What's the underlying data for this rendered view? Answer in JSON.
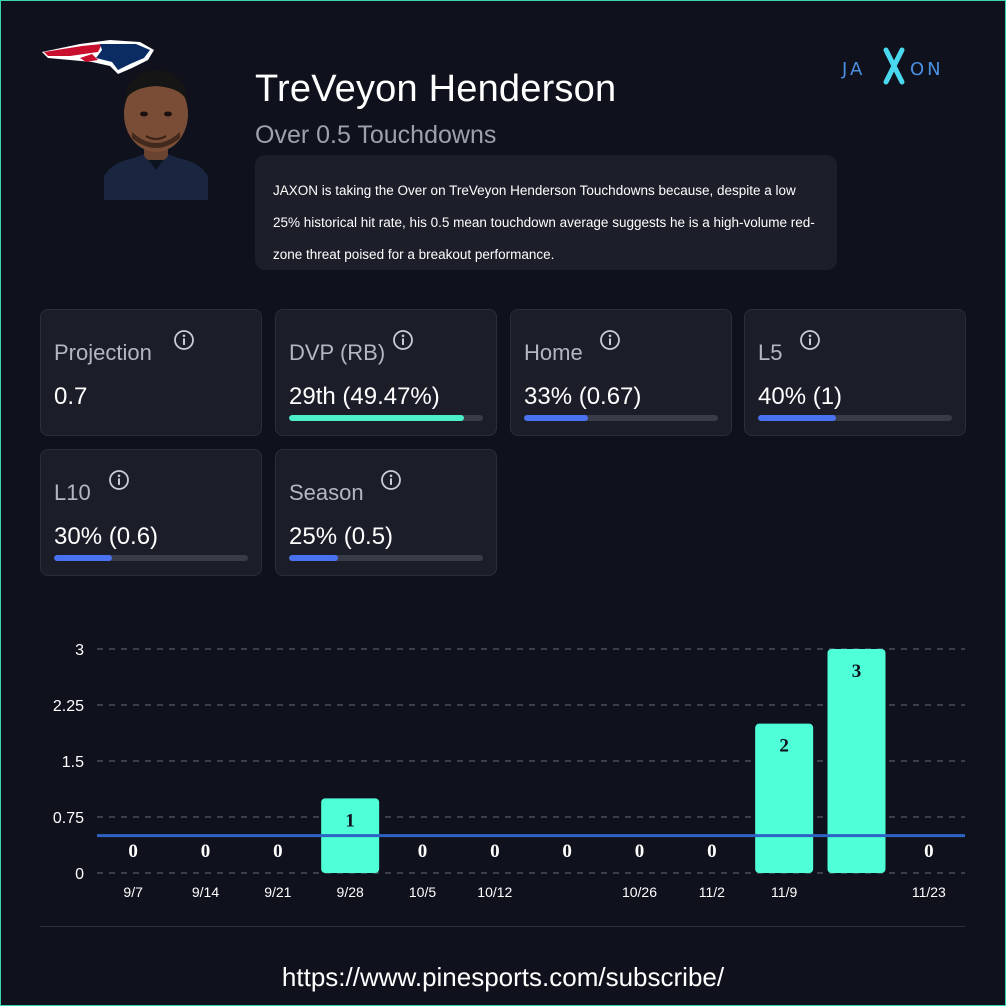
{
  "header": {
    "player_name": "TreVeyon Henderson",
    "prop": "Over 0.5 Touchdowns",
    "analysis": "JAXON is taking the Over on TreVeyon Henderson Touchdowns because, despite a low 25% historical hit rate, his 0.5 mean touchdown average suggests he is a high-volume red-zone threat poised for a breakout performance.",
    "brand_logo_text": "JAXON",
    "team_logo": "patriots-logo",
    "headshot": "player-headshot"
  },
  "stats": [
    {
      "label": "Projection",
      "value": "0.7",
      "progress": null
    },
    {
      "label": "DVP (RB)",
      "value": "29th (49.47%)",
      "progress": 0.9,
      "color": "#4cf0c8"
    },
    {
      "label": "Home",
      "value": "33% (0.67)",
      "progress": 0.33,
      "color": "#4a72f0"
    },
    {
      "label": "L5",
      "value": "40% (1)",
      "progress": 0.4,
      "color": "#4a72f0"
    },
    {
      "label": "L10",
      "value": "30% (0.6)",
      "progress": 0.3,
      "color": "#4a72f0"
    },
    {
      "label": "Season",
      "value": "25% (0.5)",
      "progress": 0.25,
      "color": "#4a72f0"
    }
  ],
  "colors": {
    "background": "#0f111c",
    "card": "#1b1d29",
    "bar": "#4effd8",
    "line": "#2e63c4",
    "accent_teal": "#4cf0c8",
    "accent_blue": "#4a72f0"
  },
  "chart_data": {
    "type": "bar",
    "categories": [
      "9/7",
      "9/14",
      "9/21",
      "9/28",
      "10/5",
      "10/12",
      "",
      "10/26",
      "11/2",
      "11/9",
      "",
      "11/23"
    ],
    "values": [
      0,
      0,
      0,
      1,
      0,
      0,
      0,
      0,
      0,
      2,
      3,
      0
    ],
    "data_labels": [
      "0",
      "0",
      "0",
      "1",
      "0",
      "0",
      "0",
      "0",
      "0",
      "2",
      "3",
      "0"
    ],
    "yticks": [
      "0",
      "0.75",
      "1.5",
      "2.25",
      "3"
    ],
    "ylim": [
      0,
      3
    ],
    "reference_line": 0.5,
    "grid": "dashed horizontal",
    "title": "",
    "xlabel": "",
    "ylabel": ""
  },
  "footer": {
    "url": "https://www.pinesports.com/subscribe/"
  }
}
